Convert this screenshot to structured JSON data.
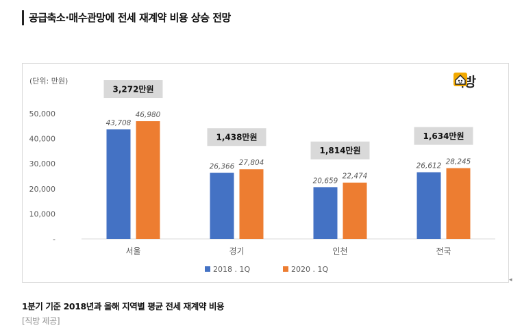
{
  "headline": "공급축소·매수관망에 전세 재계약 비용 상승 전망",
  "logo": {
    "text": "직방",
    "icon": "house-icon"
  },
  "caption": "1분기 기준 2018년과 올해 지역별 평균 전세 재계약 비용",
  "credit": "[직방 제공]",
  "chart_data": {
    "type": "bar",
    "unit_label": "(단위: 만원)",
    "categories": [
      "서울",
      "경기",
      "인천",
      "전국"
    ],
    "series": [
      {
        "name": "2018 . 1Q",
        "values": [
          43708,
          26366,
          20659,
          26612
        ],
        "labels": [
          "43,708",
          "26,366",
          "20,659",
          "26,612"
        ],
        "color": "#4472c4"
      },
      {
        "name": "2020 . 1Q",
        "values": [
          46980,
          27804,
          22474,
          28245
        ],
        "labels": [
          "46,980",
          "27,804",
          "22,474",
          "28,245"
        ],
        "color": "#ed7d31"
      }
    ],
    "differences": [
      "3,272만원",
      "1,438만원",
      "1,814만원",
      "1,634만원"
    ],
    "y_ticks": [
      {
        "value": 0,
        "label": "-"
      },
      {
        "value": 10000,
        "label": "10,000"
      },
      {
        "value": 20000,
        "label": "20,000"
      },
      {
        "value": 30000,
        "label": "30,000"
      },
      {
        "value": 40000,
        "label": "40,000"
      },
      {
        "value": 50000,
        "label": "50,000"
      }
    ],
    "ylim": [
      0,
      50000
    ],
    "grid": false,
    "legend_position": "bottom"
  }
}
